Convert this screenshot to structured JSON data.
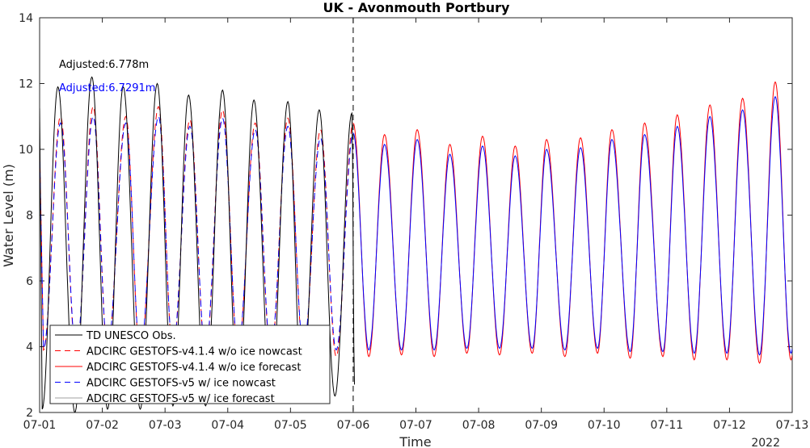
{
  "chart_data": {
    "type": "line",
    "title": "UK - Avonmouth Portbury",
    "xlabel": "Time",
    "ylabel": "Water Level (m)",
    "year_label": "2022",
    "x_tick_labels": [
      "07-01",
      "07-02",
      "07-03",
      "07-04",
      "07-05",
      "07-06",
      "07-07",
      "07-08",
      "07-09",
      "07-10",
      "07-11",
      "07-12",
      "07-13"
    ],
    "xlim": [
      "2022-07-01",
      "2022-07-13"
    ],
    "ylim": [
      2,
      14
    ],
    "y_ticks": [
      2,
      4,
      6,
      8,
      10,
      12,
      14
    ],
    "forecast_start": "2022-07-06",
    "grid": false,
    "legend_position": "bottom-left",
    "annotations": [
      {
        "text": "Adjusted:6.778m",
        "color": "#000000"
      },
      {
        "text": "Adjusted:6.7291m",
        "color": "#0000ff"
      }
    ],
    "series": [
      {
        "name": "TD UNESCO Obs.",
        "color": "#000000",
        "dash": "solid",
        "x_end": "2022-07-06 00:30",
        "highs": [
          [
            "2022-07-01 07:00",
            11.9
          ],
          [
            "2022-07-01 20:00",
            12.2
          ],
          [
            "2022-07-02 08:00",
            11.9
          ],
          [
            "2022-07-02 21:00",
            12.0
          ],
          [
            "2022-07-03 09:00",
            11.65
          ],
          [
            "2022-07-03 22:00",
            11.8
          ],
          [
            "2022-07-04 10:00",
            11.5
          ],
          [
            "2022-07-04 23:00",
            11.45
          ],
          [
            "2022-07-05 11:00",
            11.2
          ],
          [
            "2022-07-05 23:30",
            11.1
          ]
        ],
        "lows": [
          [
            "2022-07-01 01:00",
            2.1
          ],
          [
            "2022-07-01 13:30",
            2.0
          ],
          [
            "2022-07-02 02:00",
            2.1
          ],
          [
            "2022-07-02 14:30",
            2.1
          ],
          [
            "2022-07-03 03:00",
            2.2
          ],
          [
            "2022-07-03 15:30",
            2.2
          ],
          [
            "2022-07-04 04:00",
            2.3
          ],
          [
            "2022-07-04 16:30",
            2.35
          ],
          [
            "2022-07-05 04:30",
            2.45
          ],
          [
            "2022-07-05 17:00",
            2.5
          ],
          [
            "2022-07-06 00:30",
            2.85
          ]
        ]
      },
      {
        "name": "ADCIRC GESTOFS-v4.1.4 w/o ice nowcast",
        "color": "#ff0000",
        "dash": "dashed",
        "x_end": "2022-07-06 00:00",
        "highs": [
          [
            "2022-07-01 08:00",
            11.0
          ],
          [
            "2022-07-01 20:30",
            11.3
          ],
          [
            "2022-07-02 09:00",
            11.0
          ],
          [
            "2022-07-02 21:30",
            11.3
          ],
          [
            "2022-07-03 09:30",
            10.9
          ],
          [
            "2022-07-03 22:00",
            11.2
          ],
          [
            "2022-07-04 10:30",
            10.8
          ],
          [
            "2022-07-04 23:00",
            10.95
          ],
          [
            "2022-07-05 11:30",
            10.6
          ],
          [
            "2022-07-06 00:00",
            10.8
          ]
        ],
        "lows": [
          [
            "2022-07-01 01:30",
            3.9
          ],
          [
            "2022-07-01 14:00",
            3.7
          ],
          [
            "2022-07-02 02:00",
            3.9
          ],
          [
            "2022-07-02 14:30",
            3.7
          ],
          [
            "2022-07-03 03:00",
            3.85
          ],
          [
            "2022-07-03 15:30",
            3.75
          ],
          [
            "2022-07-04 04:00",
            3.8
          ],
          [
            "2022-07-04 16:30",
            3.75
          ],
          [
            "2022-07-05 05:00",
            3.8
          ],
          [
            "2022-07-05 17:30",
            3.7
          ]
        ]
      },
      {
        "name": "ADCIRC GESTOFS-v4.1.4 w/o ice forecast",
        "color": "#ff0000",
        "dash": "solid",
        "x_end": "2022-07-13 00:00",
        "highs": [
          [
            "2022-07-06 00:00",
            10.8
          ],
          [
            "2022-07-06 12:00",
            10.45
          ],
          [
            "2022-07-07 00:30",
            10.6
          ],
          [
            "2022-07-07 13:00",
            10.15
          ],
          [
            "2022-07-08 01:30",
            10.4
          ],
          [
            "2022-07-08 14:00",
            10.1
          ],
          [
            "2022-07-09 02:00",
            10.3
          ],
          [
            "2022-07-09 15:00",
            10.35
          ],
          [
            "2022-07-10 03:00",
            10.6
          ],
          [
            "2022-07-10 15:30",
            10.8
          ],
          [
            "2022-07-11 04:00",
            11.05
          ],
          [
            "2022-07-11 16:30",
            11.35
          ],
          [
            "2022-07-12 05:00",
            11.55
          ],
          [
            "2022-07-12 17:30",
            12.05
          ]
        ],
        "lows": [
          [
            "2022-07-06 06:00",
            3.7
          ],
          [
            "2022-07-06 18:30",
            3.75
          ],
          [
            "2022-07-07 07:00",
            3.7
          ],
          [
            "2022-07-07 19:30",
            3.8
          ],
          [
            "2022-07-08 08:00",
            3.75
          ],
          [
            "2022-07-08 20:30",
            3.8
          ],
          [
            "2022-07-09 09:00",
            3.7
          ],
          [
            "2022-07-09 21:30",
            3.8
          ],
          [
            "2022-07-10 10:00",
            3.65
          ],
          [
            "2022-07-10 22:30",
            3.7
          ],
          [
            "2022-07-11 10:30",
            3.6
          ],
          [
            "2022-07-11 23:00",
            3.6
          ],
          [
            "2022-07-12 11:30",
            3.5
          ],
          [
            "2022-07-12 23:30",
            3.6
          ]
        ]
      },
      {
        "name": "ADCIRC GESTOFS-v5 w/ ice nowcast",
        "color": "#0000ff",
        "dash": "dashed",
        "x_end": "2022-07-06 00:00",
        "highs": [
          [
            "2022-07-01 08:00",
            10.8
          ],
          [
            "2022-07-01 20:30",
            11.0
          ],
          [
            "2022-07-02 09:00",
            10.8
          ],
          [
            "2022-07-02 21:30",
            11.0
          ],
          [
            "2022-07-03 09:30",
            10.7
          ],
          [
            "2022-07-03 22:00",
            10.95
          ],
          [
            "2022-07-04 10:30",
            10.6
          ],
          [
            "2022-07-04 23:00",
            10.7
          ],
          [
            "2022-07-05 11:30",
            10.35
          ],
          [
            "2022-07-06 00:00",
            10.5
          ]
        ],
        "lows": [
          [
            "2022-07-01 01:30",
            3.95
          ],
          [
            "2022-07-01 14:00",
            3.85
          ],
          [
            "2022-07-02 02:00",
            3.95
          ],
          [
            "2022-07-02 14:30",
            3.85
          ],
          [
            "2022-07-03 03:00",
            3.95
          ],
          [
            "2022-07-03 15:30",
            3.9
          ],
          [
            "2022-07-04 04:00",
            3.95
          ],
          [
            "2022-07-04 16:30",
            3.9
          ],
          [
            "2022-07-05 05:00",
            3.95
          ],
          [
            "2022-07-05 17:30",
            3.9
          ]
        ]
      },
      {
        "name": "ADCIRC GESTOFS-v5 w/ ice forecast",
        "color": "#0000ff",
        "dash": "solid",
        "x_end": "2022-07-13 00:00",
        "highs": [
          [
            "2022-07-06 00:00",
            10.5
          ],
          [
            "2022-07-06 12:00",
            10.15
          ],
          [
            "2022-07-07 00:30",
            10.3
          ],
          [
            "2022-07-07 13:00",
            9.85
          ],
          [
            "2022-07-08 01:30",
            10.1
          ],
          [
            "2022-07-08 14:00",
            9.8
          ],
          [
            "2022-07-09 02:00",
            10.0
          ],
          [
            "2022-07-09 15:00",
            10.05
          ],
          [
            "2022-07-10 03:00",
            10.3
          ],
          [
            "2022-07-10 15:30",
            10.45
          ],
          [
            "2022-07-11 04:00",
            10.7
          ],
          [
            "2022-07-11 16:30",
            11.0
          ],
          [
            "2022-07-12 05:00",
            11.2
          ],
          [
            "2022-07-12 17:30",
            11.6
          ]
        ],
        "lows": [
          [
            "2022-07-06 06:00",
            3.9
          ],
          [
            "2022-07-06 18:30",
            3.9
          ],
          [
            "2022-07-07 07:00",
            3.9
          ],
          [
            "2022-07-07 19:30",
            3.95
          ],
          [
            "2022-07-08 08:00",
            3.95
          ],
          [
            "2022-07-08 20:30",
            3.95
          ],
          [
            "2022-07-09 09:00",
            3.9
          ],
          [
            "2022-07-09 21:30",
            3.95
          ],
          [
            "2022-07-10 10:00",
            3.85
          ],
          [
            "2022-07-10 22:30",
            3.85
          ],
          [
            "2022-07-11 10:30",
            3.8
          ],
          [
            "2022-07-11 23:00",
            3.8
          ],
          [
            "2022-07-12 11:30",
            3.75
          ],
          [
            "2022-07-12 23:30",
            3.8
          ]
        ]
      }
    ]
  }
}
